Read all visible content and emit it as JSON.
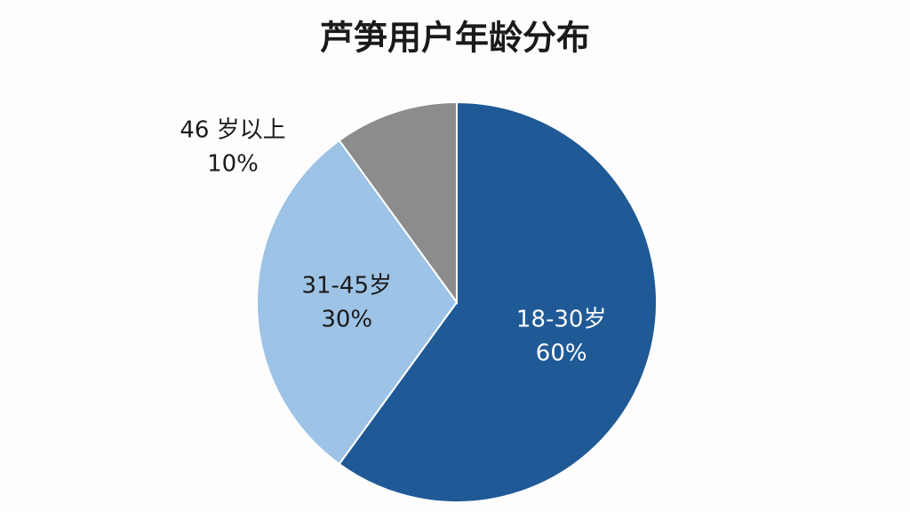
{
  "chart_data": {
    "type": "pie",
    "title": "芦笋用户年龄分布",
    "categories": [
      "18-30岁",
      "31-45岁",
      "46 岁以上"
    ],
    "values": [
      60,
      30,
      10
    ],
    "value_labels": [
      "60%",
      "30%",
      "10%"
    ],
    "colors": [
      "#1f5a96",
      "#9dc3e6",
      "#8c8c8c"
    ]
  }
}
